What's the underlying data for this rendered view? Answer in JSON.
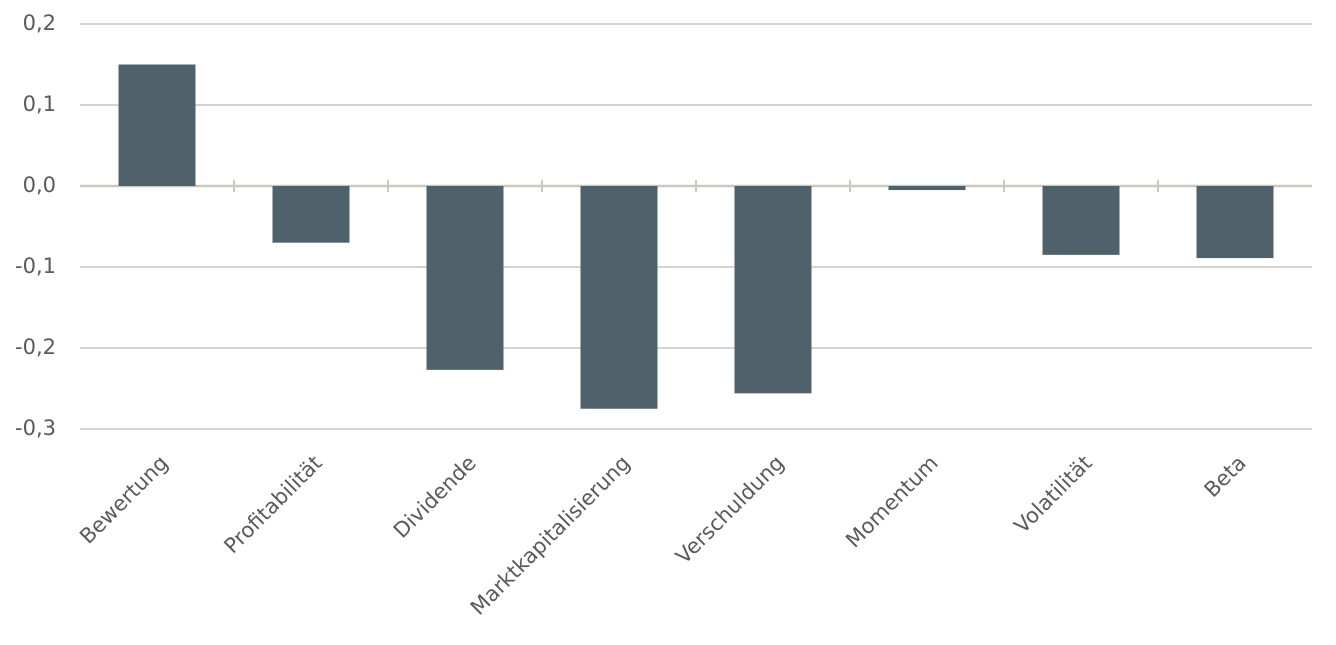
{
  "chart_data": {
    "type": "bar",
    "categories": [
      "Bewertung",
      "Profitabilität",
      "Dividende",
      "Marktkapitalisierung",
      "Verschuldung",
      "Momentum",
      "Volatilität",
      "Beta"
    ],
    "values": [
      0.15,
      -0.07,
      -0.227,
      -0.275,
      -0.256,
      -0.005,
      -0.085,
      -0.089
    ],
    "color": "#4f626b",
    "ylim": [
      -0.3,
      0.2
    ],
    "yticks": [
      {
        "value": -0.3,
        "label": "-0,3"
      },
      {
        "value": -0.2,
        "label": "-0,2"
      },
      {
        "value": -0.1,
        "label": "-0,1"
      },
      {
        "value": 0,
        "label": "0,0"
      },
      {
        "value": 0.1,
        "label": "0,1"
      },
      {
        "value": 0.2,
        "label": "0,2"
      }
    ],
    "grid": true
  }
}
